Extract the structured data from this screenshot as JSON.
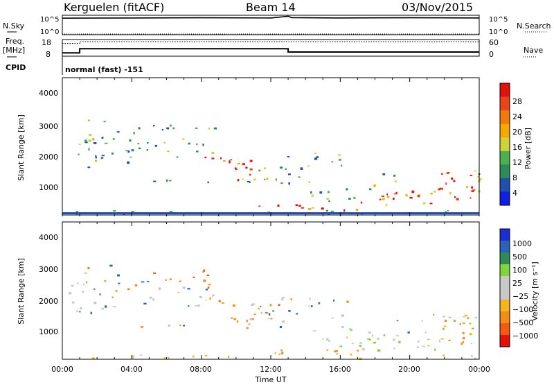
{
  "header": {
    "station": "Kerguelen (fitACF)",
    "beam": "Beam 14",
    "date": "03/Nov/2015"
  },
  "colors": {
    "power_scale": [
      "#1020e0",
      "#1f4fb0",
      "#2e8b57",
      "#4caf50",
      "#cfd33a",
      "#f2a900",
      "#f07a10",
      "#e8451a",
      "#e3120b"
    ],
    "velocity_scale": [
      "#e3120b",
      "#f05a12",
      "#f28c1a",
      "#f5b520",
      "#c8c8c8",
      "#c8c8c8",
      "#7ed63a",
      "#2e8b57",
      "#2b63b8",
      "#1a2fd4"
    ]
  },
  "chart_data": [
    {
      "id": "nsky",
      "type": "line",
      "left_label_top": "N.Sky",
      "left_ticks": [
        "10^5",
        "10^0"
      ],
      "right_ticks": [
        "10^5",
        "10^0"
      ],
      "right_label": "N.Search",
      "series": [
        {
          "x": [
            0,
            4,
            8,
            12,
            13,
            13.2,
            16,
            20,
            24
          ],
          "y": [
            0.85,
            0.86,
            0.87,
            0.86,
            0.95,
            0.88,
            0.86,
            0.87,
            0.86
          ]
        },
        {
          "x": [
            0,
            24
          ],
          "y": [
            0.0,
            0.0
          ]
        }
      ],
      "ylim": [
        0,
        1
      ]
    },
    {
      "id": "freq",
      "type": "line",
      "left_label": "Freq.",
      "left_unit": "[MHz]",
      "left_ticks": [
        "18",
        "8"
      ],
      "right_ticks": [
        "60",
        "0"
      ],
      "right_label": "Nave",
      "series": [
        {
          "name": "Freq",
          "x": [
            0,
            1,
            1,
            13,
            13,
            24
          ],
          "y": [
            10,
            10,
            12.5,
            12.5,
            10.5,
            10.5
          ]
        },
        {
          "name": "Nave",
          "x": [
            0,
            1,
            1,
            24
          ],
          "y": [
            46,
            46,
            52,
            52
          ]
        }
      ],
      "ylim": [
        8,
        18
      ]
    },
    {
      "id": "cpid",
      "type": "table",
      "label": "CPID",
      "text": "normal (fast) -151"
    },
    {
      "id": "power",
      "type": "heatmap",
      "ylabel": "Slant Range [km]",
      "yticks": [
        "4000",
        "3000",
        "2000",
        "1000"
      ],
      "ylim": [
        200,
        4600
      ],
      "xlim": [
        0,
        24
      ],
      "colorbar_label": "Power [dB]",
      "colorbar_ticks": [
        "28",
        "24",
        "20",
        "16",
        "12",
        "8",
        "4"
      ]
    },
    {
      "id": "velocity",
      "type": "heatmap",
      "ylabel": "Slant Range [km]",
      "yticks": [
        "4000",
        "3000",
        "2000",
        "1000"
      ],
      "ylim": [
        200,
        4600
      ],
      "xlim": [
        0,
        24
      ],
      "xlabel": "Time UT",
      "xticks": [
        "00:00",
        "04:00",
        "08:00",
        "12:00",
        "16:00",
        "20:00",
        "00:00"
      ],
      "colorbar_label": "Velocity [m s⁻¹]",
      "colorbar_ticks": [
        "1000",
        "500",
        "100",
        "25",
        "−25",
        "−100",
        "−500",
        "−1000"
      ]
    }
  ]
}
